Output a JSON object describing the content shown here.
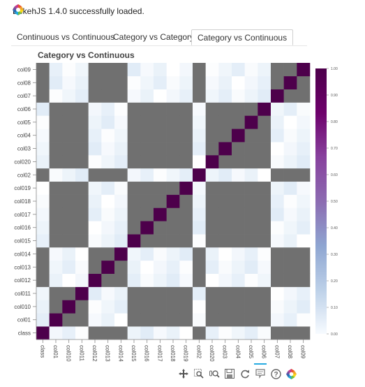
{
  "status_message": "BokehJS 1.4.0 successfully loaded.",
  "tabs": [
    {
      "label": "Continuous vs Continuous",
      "active": false
    },
    {
      "label": "Category vs Category",
      "active": false
    },
    {
      "label": "Category vs Continuous",
      "active": true
    }
  ],
  "plot_title": "Category vs Continuous",
  "chart_data": {
    "type": "heatmap",
    "title": "Category vs Continuous",
    "x_categories": [
      "class",
      "col01",
      "col010",
      "col011",
      "col012",
      "col013",
      "col014",
      "col015",
      "col016",
      "col017",
      "col018",
      "col019",
      "col02",
      "col020",
      "col03",
      "col04",
      "col05",
      "col06",
      "col07",
      "col08",
      "col09"
    ],
    "y_categories": [
      "class",
      "col01",
      "col010",
      "col011",
      "col012",
      "col013",
      "col014",
      "col015",
      "col016",
      "col017",
      "col018",
      "col019",
      "col02",
      "col020",
      "col03",
      "col04",
      "col05",
      "col06",
      "col07",
      "col08",
      "col09"
    ],
    "diagonal_value": 1.0,
    "missing_color": "#707070",
    "value_range": [
      0.0,
      1.0
    ],
    "colorbar_ticks": [
      "1.00",
      "0.90",
      "0.80",
      "0.70",
      "0.60",
      "0.50",
      "0.40",
      "0.30",
      "0.20",
      "0.10",
      "0.00"
    ],
    "colormap": [
      "#f7fbff",
      "#bcd0e8",
      "#8ea5d1",
      "#8c6bb1",
      "#88419d",
      "#6e016b",
      "#4d004b"
    ]
  },
  "toolbar": {
    "tools": [
      {
        "name": "pan-tool",
        "icon": "pan-icon",
        "active": true
      },
      {
        "name": "box-zoom-tool",
        "icon": "box-zoom-icon",
        "active": false
      },
      {
        "name": "wheel-zoom-tool",
        "icon": "wheel-zoom-icon",
        "active": false
      },
      {
        "name": "save-tool",
        "icon": "save-icon",
        "active": false
      },
      {
        "name": "reset-tool",
        "icon": "reset-icon",
        "active": false
      },
      {
        "name": "hover-tool",
        "icon": "hover-icon",
        "active": true
      },
      {
        "name": "help-tool",
        "icon": "help-icon",
        "active": false
      },
      {
        "name": "bokeh-logo",
        "icon": "bokeh-logo-icon",
        "active": false
      }
    ]
  }
}
